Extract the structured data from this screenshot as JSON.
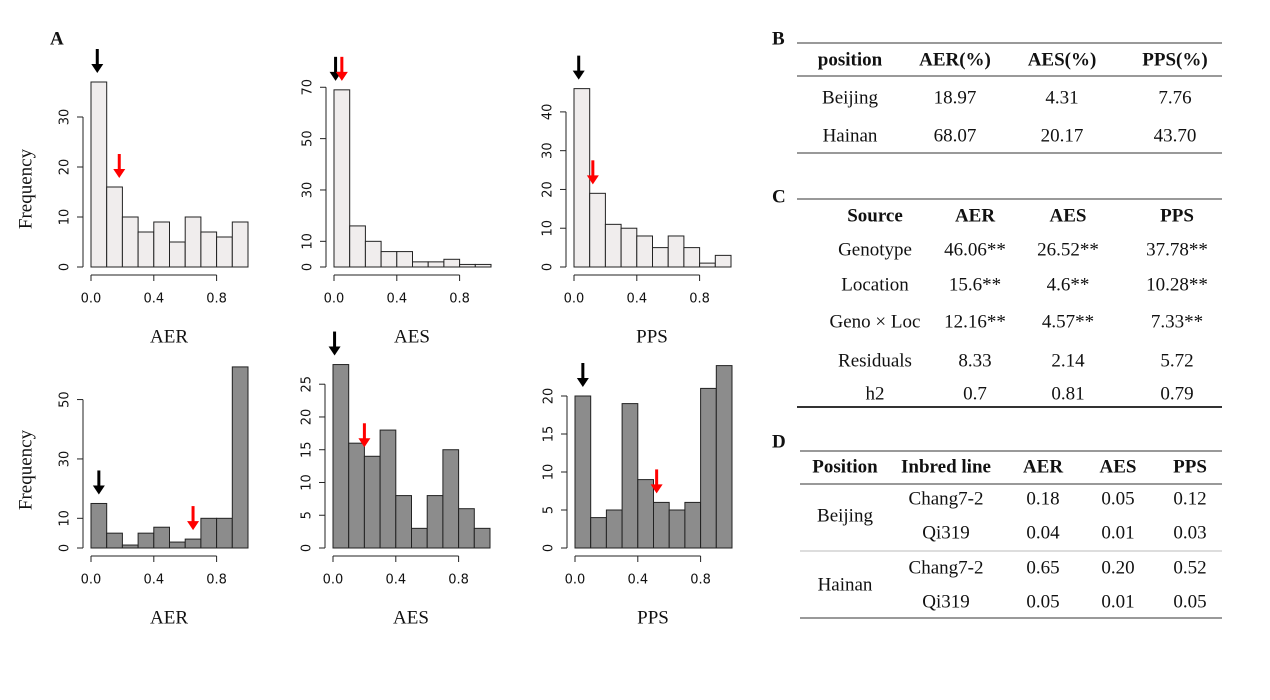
{
  "panel_labels": {
    "a": "A",
    "b": "B",
    "c": "C",
    "d": "D"
  },
  "chart_data": [
    {
      "type": "histogram",
      "xlabel": "AER",
      "ylabel": "Frequency",
      "bins": [
        0,
        0.1,
        0.2,
        0.3,
        0.4,
        0.5,
        0.6,
        0.7,
        0.8,
        0.9,
        1
      ],
      "counts": [
        37,
        16,
        10,
        7,
        9,
        5,
        10,
        7,
        6,
        9
      ],
      "color": "#f0eded",
      "xlim": [
        0,
        1
      ],
      "ylim": [
        0,
        38
      ],
      "xticks": [
        {
          "value": 0,
          "label": "0.0"
        },
        0.4,
        0.8
      ],
      "yticks": [
        0,
        10,
        20,
        30
      ],
      "markers": [
        {
          "x": 0.04,
          "color": "black"
        },
        {
          "x": 0.18,
          "color": "red"
        }
      ]
    },
    {
      "type": "histogram",
      "xlabel": "AES",
      "bins": [
        0,
        0.1,
        0.2,
        0.3,
        0.4,
        0.5,
        0.6,
        0.7,
        0.8,
        0.9,
        1
      ],
      "counts": [
        69,
        16,
        10,
        6,
        6,
        2,
        2,
        3,
        1,
        1
      ],
      "color": "#f0eded",
      "xlim": [
        0,
        1
      ],
      "ylim": [
        0,
        74
      ],
      "xticks": [
        {
          "value": 0,
          "label": "0.0"
        },
        0.4,
        0.8
      ],
      "yticks": [
        0,
        10,
        30,
        50,
        70
      ],
      "markers": [
        {
          "x": 0.01,
          "color": "black"
        },
        {
          "x": 0.05,
          "color": "red"
        }
      ]
    },
    {
      "type": "histogram",
      "xlabel": "PPS",
      "bins": [
        0,
        0.1,
        0.2,
        0.3,
        0.4,
        0.5,
        0.6,
        0.7,
        0.8,
        0.9,
        1
      ],
      "counts": [
        46,
        19,
        11,
        10,
        8,
        5,
        8,
        5,
        1,
        3
      ],
      "color": "#f0eded",
      "xlim": [
        0,
        1
      ],
      "ylim": [
        0,
        49
      ],
      "xticks": [
        {
          "value": 0,
          "label": "0.0"
        },
        0.4,
        0.8
      ],
      "yticks": [
        0,
        10,
        20,
        30,
        40
      ],
      "markers": [
        {
          "x": 0.03,
          "color": "black"
        },
        {
          "x": 0.12,
          "color": "red"
        }
      ]
    },
    {
      "type": "histogram",
      "xlabel": "AER",
      "ylabel": "Frequency",
      "bins": [
        0,
        0.1,
        0.2,
        0.3,
        0.4,
        0.5,
        0.6,
        0.7,
        0.8,
        0.9,
        1
      ],
      "counts": [
        15,
        5,
        1,
        5,
        7,
        2,
        3,
        10,
        10,
        61
      ],
      "color": "#8c8c8c",
      "xlim": [
        0,
        1
      ],
      "ylim": [
        0,
        64
      ],
      "xticks": [
        {
          "value": 0,
          "label": "0.0"
        },
        0.4,
        0.8
      ],
      "yticks": [
        0,
        10,
        30,
        50
      ],
      "markers": [
        {
          "x": 0.05,
          "color": "black"
        },
        {
          "x": 0.65,
          "color": "red"
        }
      ]
    },
    {
      "type": "histogram",
      "xlabel": "AES",
      "bins": [
        0,
        0.1,
        0.2,
        0.3,
        0.4,
        0.5,
        0.6,
        0.7,
        0.8,
        0.9,
        1
      ],
      "counts": [
        28,
        16,
        14,
        18,
        8,
        3,
        8,
        15,
        6,
        3
      ],
      "color": "#8c8c8c",
      "xlim": [
        0,
        1
      ],
      "ylim": [
        0,
        29
      ],
      "xticks": [
        {
          "value": 0,
          "label": "0.0"
        },
        0.4,
        0.8
      ],
      "yticks": [
        0,
        5,
        10,
        15,
        20,
        25
      ],
      "markers": [
        {
          "x": 0.01,
          "color": "black"
        },
        {
          "x": 0.2,
          "color": "red"
        }
      ]
    },
    {
      "type": "histogram",
      "xlabel": "PPS",
      "bins": [
        0,
        0.1,
        0.2,
        0.3,
        0.4,
        0.5,
        0.6,
        0.7,
        0.8,
        0.9,
        1
      ],
      "counts": [
        20,
        4,
        5,
        19,
        9,
        6,
        5,
        6,
        21,
        24
      ],
      "color": "#8c8c8c",
      "xlim": [
        0,
        1
      ],
      "ylim": [
        0,
        25
      ],
      "xticks": [
        {
          "value": 0,
          "label": "0.0"
        },
        0.4,
        0.8
      ],
      "yticks": [
        0,
        5,
        10,
        15,
        20
      ],
      "markers": [
        {
          "x": 0.05,
          "color": "black"
        },
        {
          "x": 0.52,
          "color": "red"
        }
      ]
    }
  ],
  "table_b": {
    "header": [
      "position",
      "AER(%)",
      "AES(%)",
      "PPS(%)"
    ],
    "rows": [
      [
        "Beijing",
        "18.97",
        "4.31",
        "7.76"
      ],
      [
        "Hainan",
        "68.07",
        "20.17",
        "43.70"
      ]
    ]
  },
  "table_c": {
    "header": [
      "Source",
      "AER",
      "AES",
      "PPS"
    ],
    "rows": [
      [
        "Genotype",
        "46.06**",
        "26.52**",
        "37.78**"
      ],
      [
        "Location",
        "15.6**",
        "4.6**",
        "10.28**"
      ],
      [
        "Geno × Loc",
        "12.16**",
        "4.57**",
        "7.33**"
      ],
      [
        "Residuals",
        "8.33",
        "2.14",
        "5.72"
      ],
      [
        "h2",
        "0.7",
        "0.81",
        "0.79"
      ]
    ]
  },
  "table_d": {
    "header": [
      "Position",
      "Inbred line",
      "AER",
      "AES",
      "PPS"
    ],
    "groups": [
      {
        "position": "Beijing",
        "lines": [
          {
            "name": "Chang7-2",
            "values": [
              "0.18",
              "0.05",
              "0.12"
            ]
          },
          {
            "name": "Qi319",
            "values": [
              "0.04",
              "0.01",
              "0.03"
            ]
          }
        ]
      },
      {
        "position": "Hainan",
        "lines": [
          {
            "name": "Chang7-2",
            "values": [
              "0.65",
              "0.20",
              "0.52"
            ]
          },
          {
            "name": "Qi319",
            "values": [
              "0.05",
              "0.01",
              "0.05"
            ]
          }
        ]
      }
    ]
  }
}
